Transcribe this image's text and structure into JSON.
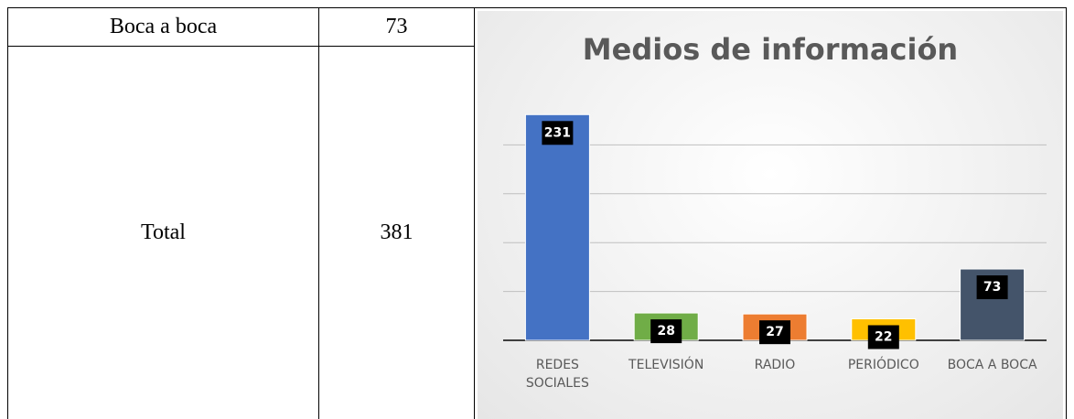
{
  "table": {
    "rows": [
      [
        "Boca a boca",
        73
      ],
      [
        "Total",
        381
      ]
    ]
  },
  "chart_data": {
    "type": "bar",
    "title": "Medios de información",
    "categories": [
      "REDES SOCIALES",
      "TELEVISIÓN",
      "RADIO",
      "PERIÓDICO",
      "BOCA A BOCA"
    ],
    "values": [
      231,
      28,
      27,
      22,
      73
    ],
    "colors": [
      "#4472c4",
      "#70ad47",
      "#ed7d31",
      "#ffc000",
      "#44546a"
    ],
    "ylim": [
      0,
      250
    ],
    "yticks": [
      0,
      50,
      100,
      150,
      200
    ],
    "grid": true
  }
}
